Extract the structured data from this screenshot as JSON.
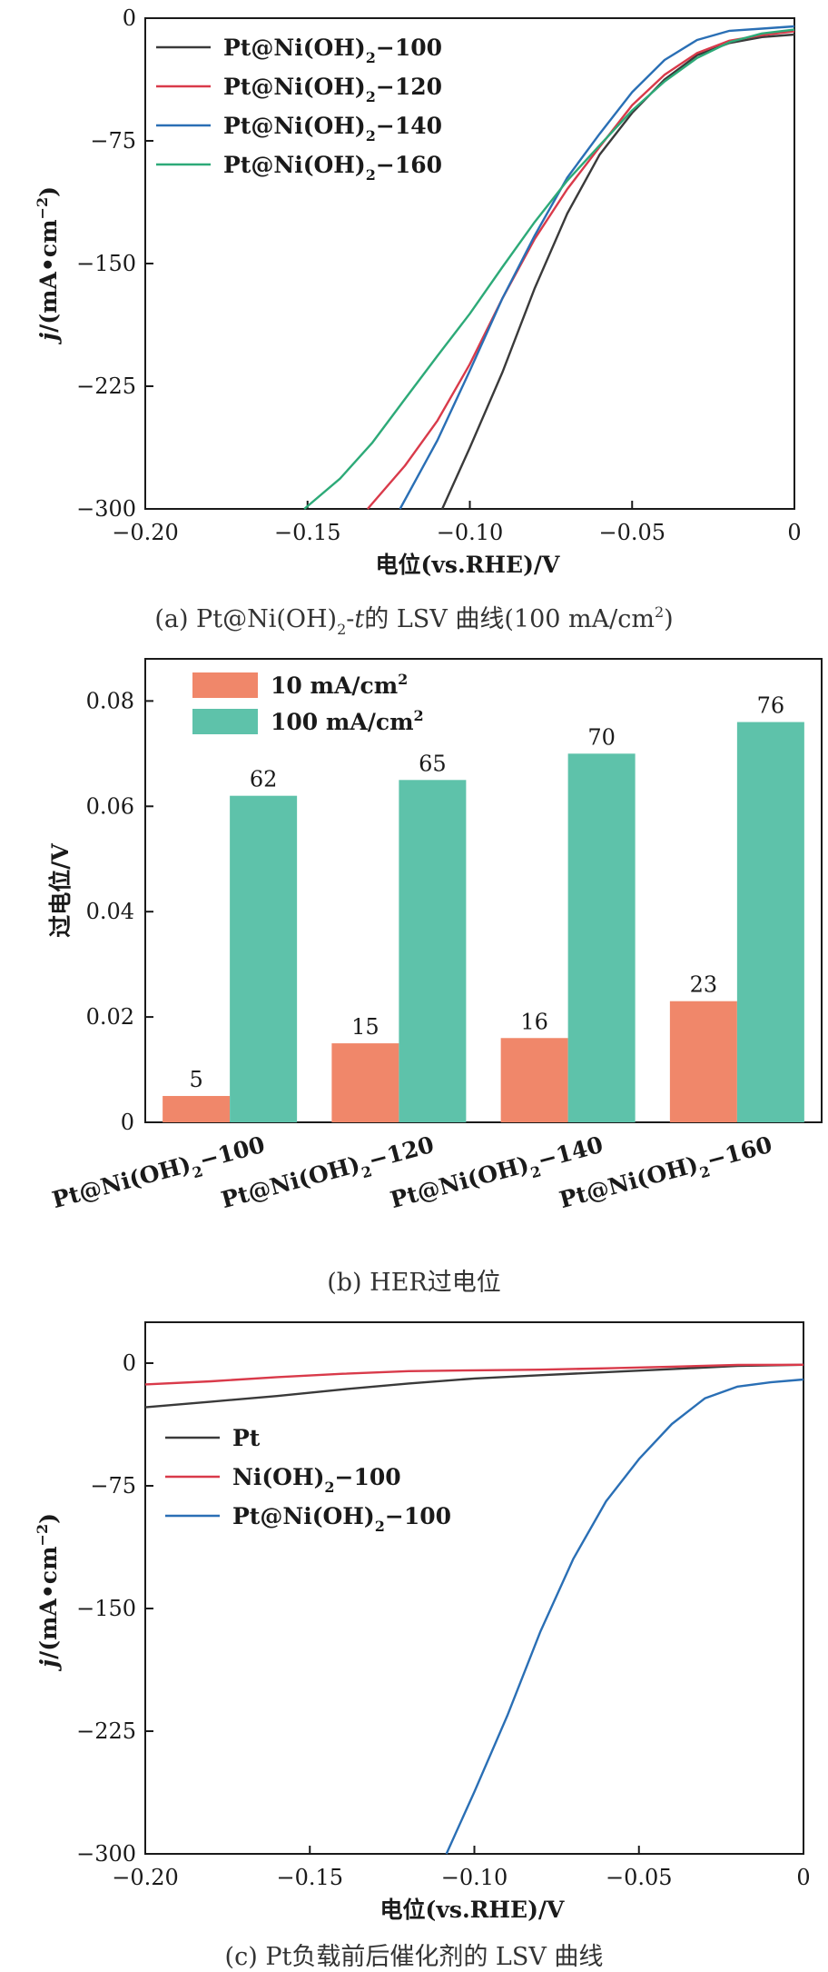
{
  "chart_data": [
    {
      "type": "line",
      "panel": "a",
      "caption_prefix": "(a) Pt@Ni(OH)",
      "caption_sub": "2",
      "caption_dash": "-",
      "caption_t": "t",
      "caption_mid": "的 LSV 曲线(100 mA/cm",
      "caption_sup": "2",
      "caption_end": ")",
      "xlabel": "电位(vs.RHE)/V",
      "ylabel_j": "j",
      "ylabel_rest": "/(mA•cm",
      "ylabel_sup": "−2",
      "ylabel_end": ")",
      "xlim": [
        -0.2,
        0
      ],
      "ylim": [
        -300,
        0
      ],
      "xticks": [
        -0.2,
        -0.15,
        -0.1,
        -0.05,
        0
      ],
      "xtick_labels": [
        "−0.20",
        "−0.15",
        "−0.10",
        "−0.05",
        "0"
      ],
      "yticks": [
        0,
        -75,
        -150,
        -225,
        -300
      ],
      "ytick_labels": [
        "0",
        "−75",
        "−150",
        "−225",
        "−300"
      ],
      "legend_position": "top-left",
      "series": [
        {
          "name_pre": "Pt@Ni(OH)",
          "name_sub": "2",
          "name_post": "−100",
          "color": "#3a3a3a",
          "x": [
            -0.1085,
            -0.1,
            -0.09,
            -0.08,
            -0.07,
            -0.06,
            -0.05,
            -0.04,
            -0.03,
            -0.02,
            -0.01,
            0
          ],
          "y": [
            -300,
            -262,
            -216,
            -165,
            -120,
            -84,
            -58,
            -37,
            -22,
            -15,
            -12,
            -10
          ]
        },
        {
          "name_pre": "Pt@Ni(OH)",
          "name_sub": "2",
          "name_post": "−120",
          "color": "#d93a4a",
          "x": [
            -0.1315,
            -0.12,
            -0.11,
            -0.1,
            -0.09,
            -0.08,
            -0.07,
            -0.06,
            -0.05,
            -0.04,
            -0.03,
            -0.02,
            -0.01,
            0
          ],
          "y": [
            -300,
            -273,
            -246,
            -212,
            -172,
            -135,
            -104,
            -78,
            -53,
            -35,
            -22,
            -14,
            -10,
            -8
          ]
        },
        {
          "name_pre": "Pt@Ni(OH)",
          "name_sub": "2",
          "name_post": "−140",
          "color": "#2a6fb5",
          "x": [
            -0.1215,
            -0.11,
            -0.1,
            -0.09,
            -0.08,
            -0.07,
            -0.06,
            -0.05,
            -0.04,
            -0.03,
            -0.02,
            -0.01,
            0
          ],
          "y": [
            -300,
            -258,
            -216,
            -172,
            -133,
            -97,
            -70,
            -45,
            -26,
            -14,
            -8,
            -6,
            -5
          ]
        },
        {
          "name_pre": "Pt@Ni(OH)",
          "name_sub": "2",
          "name_post": "−160",
          "color": "#2daa78",
          "x": [
            -0.151,
            -0.14,
            -0.13,
            -0.12,
            -0.11,
            -0.1,
            -0.09,
            -0.08,
            -0.07,
            -0.06,
            -0.05,
            -0.04,
            -0.03,
            -0.02,
            -0.01,
            0
          ],
          "y": [
            -300,
            -282,
            -260,
            -233,
            -206,
            -180,
            -152,
            -125,
            -100,
            -78,
            -56,
            -38,
            -24,
            -15,
            -10,
            -7
          ]
        }
      ]
    },
    {
      "type": "bar",
      "panel": "b",
      "caption": "(b) HER过电位",
      "ylabel": "过电位/V",
      "ylim": [
        0,
        0.088
      ],
      "yticks": [
        0,
        0.02,
        0.04,
        0.06,
        0.08
      ],
      "ytick_labels": [
        "0",
        "0.02",
        "0.04",
        "0.06",
        "0.08"
      ],
      "categories": [
        {
          "pre": "Pt@Ni(OH)",
          "sub": "2",
          "post": "−100"
        },
        {
          "pre": "Pt@Ni(OH)",
          "sub": "2",
          "post": "−120"
        },
        {
          "pre": "Pt@Ni(OH)",
          "sub": "2",
          "post": "−140"
        },
        {
          "pre": "Pt@Ni(OH)",
          "sub": "2",
          "post": "−160"
        }
      ],
      "legend_position": "top-left",
      "series": [
        {
          "name_pre": "10 mA/cm",
          "name_sup": "2",
          "color": "#f0876a",
          "values": [
            0.005,
            0.015,
            0.016,
            0.023
          ],
          "labels": [
            "5",
            "15",
            "16",
            "23"
          ]
        },
        {
          "name_pre": "100  mA/cm",
          "name_sup": "2",
          "color": "#5ec2aa",
          "values": [
            0.062,
            0.065,
            0.07,
            0.076
          ],
          "labels": [
            "62",
            "65",
            "70",
            "76"
          ]
        }
      ]
    },
    {
      "type": "line",
      "panel": "c",
      "caption": "(c) Pt负载前后催化剂的 LSV 曲线",
      "xlabel": "电位(vs.RHE)/V",
      "ylabel_j": "j",
      "ylabel_rest": "/(mA•cm",
      "ylabel_sup": "−2",
      "ylabel_end": ")",
      "xlim": [
        -0.2,
        0
      ],
      "ylim": [
        -300,
        25
      ],
      "xticks": [
        -0.2,
        -0.15,
        -0.1,
        -0.05,
        0
      ],
      "xtick_labels": [
        "−0.20",
        "−0.15",
        "−0.10",
        "−0.05",
        "0"
      ],
      "yticks": [
        0,
        -75,
        -150,
        -225,
        -300
      ],
      "ytick_labels": [
        "0",
        "−75",
        "−150",
        "−225",
        "−300"
      ],
      "legend_position": "center-left",
      "series": [
        {
          "name_pre": "Pt",
          "name_sub": "",
          "name_post": "",
          "color": "#3a3a3a",
          "x": [
            -0.2,
            -0.18,
            -0.16,
            -0.14,
            -0.12,
            -0.1,
            -0.08,
            -0.06,
            -0.04,
            -0.02,
            0
          ],
          "y": [
            -27,
            -23,
            -19.5,
            -16,
            -13,
            -10,
            -7.5,
            -5,
            -3,
            -1.5,
            -1
          ]
        },
        {
          "name_pre": "Ni(OH)",
          "name_sub": "2",
          "name_post": "−100",
          "color": "#d93a4a",
          "x": [
            -0.2,
            -0.18,
            -0.16,
            -0.14,
            -0.12,
            -0.1,
            -0.08,
            -0.06,
            -0.04,
            -0.02,
            0
          ],
          "y": [
            -13,
            -10.5,
            -8.5,
            -7,
            -5.5,
            -4.5,
            -3.5,
            -2.5,
            -2,
            -1.5,
            -1
          ]
        },
        {
          "name_pre": "Pt@Ni(OH)",
          "name_sub": "2",
          "name_post": "−100",
          "color": "#2a6fb5",
          "x": [
            -0.1085,
            -0.1,
            -0.09,
            -0.08,
            -0.07,
            -0.06,
            -0.05,
            -0.04,
            -0.03,
            -0.02,
            -0.01,
            0
          ],
          "y": [
            -300,
            -262,
            -216,
            -165,
            -120,
            -84,
            -58,
            -37,
            -22,
            -15,
            -12,
            -10
          ]
        }
      ]
    }
  ]
}
